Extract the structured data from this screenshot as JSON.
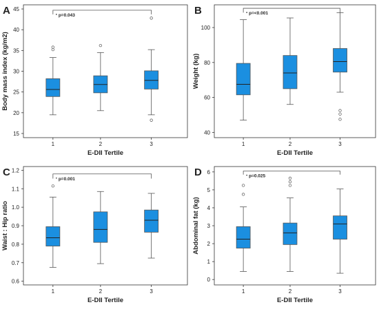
{
  "chart_data": [
    {
      "panel": "A",
      "type": "boxplot",
      "xlabel": "E-DII Tertile",
      "ylabel": "Body mass index  (kg/m2)",
      "categories": [
        "1",
        "2",
        "3"
      ],
      "ylim": [
        14,
        46
      ],
      "yticks": [
        15,
        20,
        25,
        30,
        35,
        40,
        45
      ],
      "boxes": [
        {
          "category": "1",
          "min": 19.5,
          "q1": 23.9,
          "median": 25.6,
          "q3": 28.2,
          "max": 33.3,
          "outliers": [
            35.2,
            35.8
          ]
        },
        {
          "category": "2",
          "min": 20.5,
          "q1": 24.8,
          "median": 26.8,
          "q3": 28.9,
          "max": 34.5,
          "outliers": [
            36.2
          ]
        },
        {
          "category": "3",
          "min": 19.5,
          "q1": 25.7,
          "median": 27.8,
          "q3": 30.1,
          "max": 35.2,
          "outliers": [
            42.8,
            18.2
          ]
        }
      ],
      "significance": {
        "label": "p=0.043",
        "y": 44.7,
        "tick_down_to": 43.7
      }
    },
    {
      "panel": "B",
      "type": "boxplot",
      "xlabel": "E-DII Tertile",
      "ylabel": "Weight  (kg)",
      "categories": [
        "1",
        "2",
        "3"
      ],
      "ylim": [
        37,
        113
      ],
      "yticks": [
        40,
        60,
        80,
        100
      ],
      "boxes": [
        {
          "category": "1",
          "min": 47,
          "q1": 61.5,
          "median": 67.5,
          "q3": 79.5,
          "max": 104.5,
          "outliers": []
        },
        {
          "category": "2",
          "min": 56,
          "q1": 65,
          "median": 74,
          "q3": 84,
          "max": 105.5,
          "outliers": []
        },
        {
          "category": "3",
          "min": 63,
          "q1": 74.5,
          "median": 80.5,
          "q3": 88,
          "max": 108.5,
          "outliers": [
            52.5,
            50.5,
            47.5
          ]
        }
      ],
      "significance": {
        "label": "p=<0.001",
        "y": 111,
        "tick_down_to": 108.5
      }
    },
    {
      "panel": "C",
      "type": "boxplot",
      "xlabel": "E-DII Tertile",
      "ylabel": "Waist : Hip ratio",
      "categories": [
        "1",
        "2",
        "3"
      ],
      "ylim": [
        0.58,
        1.22
      ],
      "yticks": [
        0.6,
        0.7,
        0.8,
        0.9,
        1.0,
        1.1,
        1.2
      ],
      "yticklabels": [
        "0.6",
        "0.7",
        "0.8",
        "0.9",
        "1.0",
        "1.1",
        "1.2"
      ],
      "boxes": [
        {
          "category": "1",
          "min": 0.675,
          "q1": 0.79,
          "median": 0.835,
          "q3": 0.895,
          "max": 1.055,
          "outliers": [
            1.115
          ]
        },
        {
          "category": "2",
          "min": 0.695,
          "q1": 0.81,
          "median": 0.88,
          "q3": 0.975,
          "max": 1.085,
          "outliers": []
        },
        {
          "category": "3",
          "min": 0.725,
          "q1": 0.865,
          "median": 0.93,
          "q3": 0.985,
          "max": 1.075,
          "outliers": []
        }
      ],
      "significance": {
        "label": "p=0.001",
        "y": 1.18,
        "tick_down_to": 1.155
      }
    },
    {
      "panel": "D",
      "type": "boxplot",
      "xlabel": "E-DII Tertile",
      "ylabel": "Abdominal fat  (kg)",
      "categories": [
        "1",
        "2",
        "3"
      ],
      "ylim": [
        -0.3,
        6.3
      ],
      "yticks": [
        0,
        1,
        2,
        3,
        4,
        5,
        6
      ],
      "boxes": [
        {
          "category": "1",
          "min": 0.45,
          "q1": 1.75,
          "median": 2.25,
          "q3": 2.95,
          "max": 4.05,
          "outliers": [
            4.75,
            5.25
          ]
        },
        {
          "category": "2",
          "min": 0.45,
          "q1": 1.95,
          "median": 2.6,
          "q3": 3.15,
          "max": 4.55,
          "outliers": [
            5.25,
            5.45,
            5.65
          ]
        },
        {
          "category": "3",
          "min": 0.35,
          "q1": 2.25,
          "median": 3.1,
          "q3": 3.55,
          "max": 5.05,
          "outliers": []
        }
      ],
      "significance": {
        "label": "p=0.025",
        "y": 6.05,
        "tick_down_to": 5.85
      }
    }
  ],
  "colors": {
    "box_fill": "#1b8fe0",
    "lines": "#555555",
    "frame": "#333333"
  }
}
